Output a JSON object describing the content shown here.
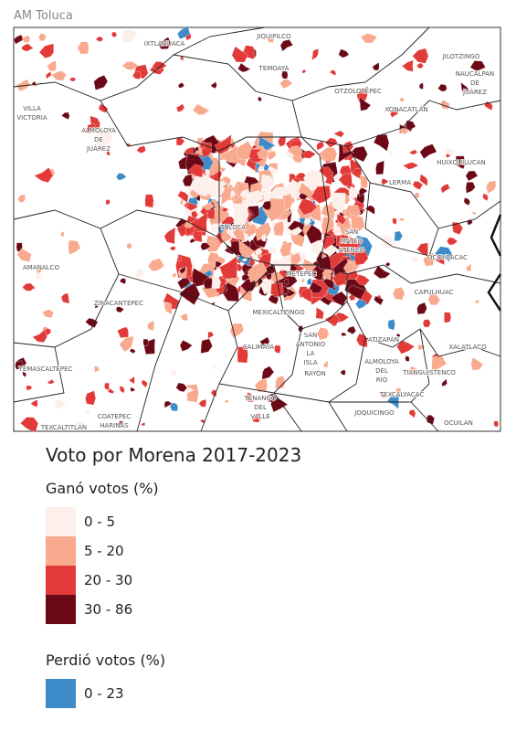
{
  "header": {
    "title": "AM Toluca"
  },
  "map": {
    "labels": [
      [
        "IXTLAHUACA"
      ],
      [
        "JIQUIPILCO"
      ],
      [
        "TEMOAYA"
      ],
      [
        "OTZOLOTEPEC"
      ],
      [
        "XONACATLÁN"
      ],
      [
        "JILOTZINGO"
      ],
      [
        "NAUCALPAN",
        "DE",
        "JUÁREZ"
      ],
      [
        "VILLA",
        "VICTORIA"
      ],
      [
        "ALMOLOYA",
        "DE",
        "JUÁREZ"
      ],
      [
        "HUIXQUILUCAN"
      ],
      [
        "LERMA"
      ],
      [
        "TOLUCA"
      ],
      [
        "SAN",
        "MATEO",
        "ATENCO"
      ],
      [
        "OCOYOACAC"
      ],
      [
        "AMANALCO"
      ],
      [
        "METEPEC"
      ],
      [
        "ZINACANTEPEC"
      ],
      [
        "CAPULHUAC"
      ],
      [
        "MEXICALTZINGO"
      ],
      [
        "CALIMAYA"
      ],
      [
        "SAN",
        "ANTONIO",
        "LA",
        "ISLA"
      ],
      [
        "ATIZAPÁN"
      ],
      [
        "XALATLACO"
      ],
      [
        "TEMASCALTEPEC"
      ],
      [
        "ALMOLOYA",
        "DEL",
        "RÍO"
      ],
      [
        "TIANGUISTENCO"
      ],
      [
        "RAYÓN"
      ],
      [
        "TEXCALYACAC"
      ],
      [
        "TENANGO",
        "DEL",
        "VALLE"
      ],
      [
        "JOQUICINGO"
      ],
      [
        "OCUILAN"
      ],
      [
        "COATEPEC",
        "HARINAS"
      ],
      [
        "TEXCALTITLÁN"
      ]
    ]
  },
  "legend": {
    "title": "Voto por Morena 2017-2023",
    "groups": [
      {
        "title": "Ganó votos (%)",
        "items": [
          {
            "label": "0 - 5",
            "color": "#fdf0ec"
          },
          {
            "label": "5 - 20",
            "color": "#f9a98e"
          },
          {
            "label": "20 - 30",
            "color": "#e23a38"
          },
          {
            "label": "30 - 86",
            "color": "#6b0a16"
          }
        ]
      },
      {
        "title": "Perdió votos (%)",
        "items": [
          {
            "label": "0 - 23",
            "color": "#3d8bc8"
          }
        ]
      }
    ]
  }
}
